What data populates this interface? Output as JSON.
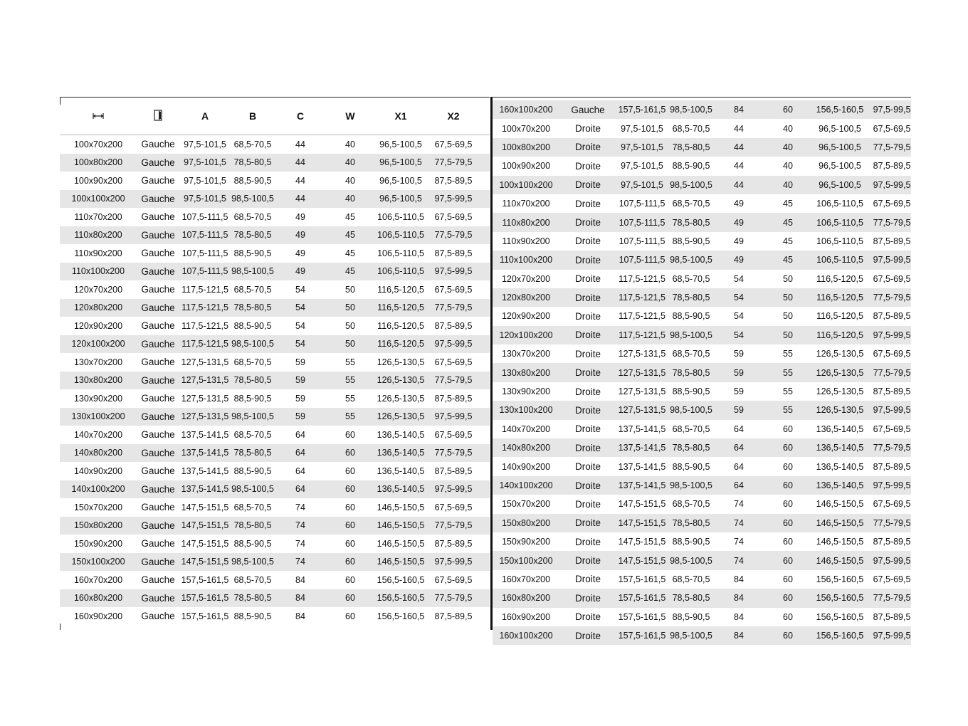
{
  "header": {
    "icons": [
      "width-arrows-icon",
      "door-icon"
    ],
    "labels": [
      "A",
      "B",
      "C",
      "W",
      "X1",
      "X2"
    ]
  },
  "left_rows": [
    [
      "100x70x200",
      "Gauche",
      "97,5-101,5",
      "68,5-70,5",
      "44",
      "40",
      "96,5-100,5",
      "67,5-69,5"
    ],
    [
      "100x80x200",
      "Gauche",
      "97,5-101,5",
      "78,5-80,5",
      "44",
      "40",
      "96,5-100,5",
      "77,5-79,5"
    ],
    [
      "100x90x200",
      "Gauche",
      "97,5-101,5",
      "88,5-90,5",
      "44",
      "40",
      "96,5-100,5",
      "87,5-89,5"
    ],
    [
      "100x100x200",
      "Gauche",
      "97,5-101,5",
      "98,5-100,5",
      "44",
      "40",
      "96,5-100,5",
      "97,5-99,5"
    ],
    [
      "110x70x200",
      "Gauche",
      "107,5-111,5",
      "68,5-70,5",
      "49",
      "45",
      "106,5-110,5",
      "67,5-69,5"
    ],
    [
      "110x80x200",
      "Gauche",
      "107,5-111,5",
      "78,5-80,5",
      "49",
      "45",
      "106,5-110,5",
      "77,5-79,5"
    ],
    [
      "110x90x200",
      "Gauche",
      "107,5-111,5",
      "88,5-90,5",
      "49",
      "45",
      "106,5-110,5",
      "87,5-89,5"
    ],
    [
      "110x100x200",
      "Gauche",
      "107,5-111,5",
      "98,5-100,5",
      "49",
      "45",
      "106,5-110,5",
      "97,5-99,5"
    ],
    [
      "120x70x200",
      "Gauche",
      "117,5-121,5",
      "68,5-70,5",
      "54",
      "50",
      "116,5-120,5",
      "67,5-69,5"
    ],
    [
      "120x80x200",
      "Gauche",
      "117,5-121,5",
      "78,5-80,5",
      "54",
      "50",
      "116,5-120,5",
      "77,5-79,5"
    ],
    [
      "120x90x200",
      "Gauche",
      "117,5-121,5",
      "88,5-90,5",
      "54",
      "50",
      "116,5-120,5",
      "87,5-89,5"
    ],
    [
      "120x100x200",
      "Gauche",
      "117,5-121,5",
      "98,5-100,5",
      "54",
      "50",
      "116,5-120,5",
      "97,5-99,5"
    ],
    [
      "130x70x200",
      "Gauche",
      "127,5-131,5",
      "68,5-70,5",
      "59",
      "55",
      "126,5-130,5",
      "67,5-69,5"
    ],
    [
      "130x80x200",
      "Gauche",
      "127,5-131,5",
      "78,5-80,5",
      "59",
      "55",
      "126,5-130,5",
      "77,5-79,5"
    ],
    [
      "130x90x200",
      "Gauche",
      "127,5-131,5",
      "88,5-90,5",
      "59",
      "55",
      "126,5-130,5",
      "87,5-89,5"
    ],
    [
      "130x100x200",
      "Gauche",
      "127,5-131,5",
      "98,5-100,5",
      "59",
      "55",
      "126,5-130,5",
      "97,5-99,5"
    ],
    [
      "140x70x200",
      "Gauche",
      "137,5-141,5",
      "68,5-70,5",
      "64",
      "60",
      "136,5-140,5",
      "67,5-69,5"
    ],
    [
      "140x80x200",
      "Gauche",
      "137,5-141,5",
      "78,5-80,5",
      "64",
      "60",
      "136,5-140,5",
      "77,5-79,5"
    ],
    [
      "140x90x200",
      "Gauche",
      "137,5-141,5",
      "88,5-90,5",
      "64",
      "60",
      "136,5-140,5",
      "87,5-89,5"
    ],
    [
      "140x100x200",
      "Gauche",
      "137,5-141,5",
      "98,5-100,5",
      "64",
      "60",
      "136,5-140,5",
      "97,5-99,5"
    ],
    [
      "150x70x200",
      "Gauche",
      "147,5-151,5",
      "68,5-70,5",
      "74",
      "60",
      "146,5-150,5",
      "67,5-69,5"
    ],
    [
      "150x80x200",
      "Gauche",
      "147,5-151,5",
      "78,5-80,5",
      "74",
      "60",
      "146,5-150,5",
      "77,5-79,5"
    ],
    [
      "150x90x200",
      "Gauche",
      "147,5-151,5",
      "88,5-90,5",
      "74",
      "60",
      "146,5-150,5",
      "87,5-89,5"
    ],
    [
      "150x100x200",
      "Gauche",
      "147,5-151,5",
      "98,5-100,5",
      "74",
      "60",
      "146,5-150,5",
      "97,5-99,5"
    ],
    [
      "160x70x200",
      "Gauche",
      "157,5-161,5",
      "68,5-70,5",
      "84",
      "60",
      "156,5-160,5",
      "67,5-69,5"
    ],
    [
      "160x80x200",
      "Gauche",
      "157,5-161,5",
      "78,5-80,5",
      "84",
      "60",
      "156,5-160,5",
      "77,5-79,5"
    ],
    [
      "160x90x200",
      "Gauche",
      "157,5-161,5",
      "88,5-90,5",
      "84",
      "60",
      "156,5-160,5",
      "87,5-89,5"
    ]
  ],
  "right_rows": [
    [
      "160x100x200",
      "Gauche",
      "157,5-161,5",
      "98,5-100,5",
      "84",
      "60",
      "156,5-160,5",
      "97,5-99,5"
    ],
    [
      "100x70x200",
      "Droite",
      "97,5-101,5",
      "68,5-70,5",
      "44",
      "40",
      "96,5-100,5",
      "67,5-69,5"
    ],
    [
      "100x80x200",
      "Droite",
      "97,5-101,5",
      "78,5-80,5",
      "44",
      "40",
      "96,5-100,5",
      "77,5-79,5"
    ],
    [
      "100x90x200",
      "Droite",
      "97,5-101,5",
      "88,5-90,5",
      "44",
      "40",
      "96,5-100,5",
      "87,5-89,5"
    ],
    [
      "100x100x200",
      "Droite",
      "97,5-101,5",
      "98,5-100,5",
      "44",
      "40",
      "96,5-100,5",
      "97,5-99,5"
    ],
    [
      "110x70x200",
      "Droite",
      "107,5-111,5",
      "68,5-70,5",
      "49",
      "45",
      "106,5-110,5",
      "67,5-69,5"
    ],
    [
      "110x80x200",
      "Droite",
      "107,5-111,5",
      "78,5-80,5",
      "49",
      "45",
      "106,5-110,5",
      "77,5-79,5"
    ],
    [
      "110x90x200",
      "Droite",
      "107,5-111,5",
      "88,5-90,5",
      "49",
      "45",
      "106,5-110,5",
      "87,5-89,5"
    ],
    [
      "110x100x200",
      "Droite",
      "107,5-111,5",
      "98,5-100,5",
      "49",
      "45",
      "106,5-110,5",
      "97,5-99,5"
    ],
    [
      "120x70x200",
      "Droite",
      "117,5-121,5",
      "68,5-70,5",
      "54",
      "50",
      "116,5-120,5",
      "67,5-69,5"
    ],
    [
      "120x80x200",
      "Droite",
      "117,5-121,5",
      "78,5-80,5",
      "54",
      "50",
      "116,5-120,5",
      "77,5-79,5"
    ],
    [
      "120x90x200",
      "Droite",
      "117,5-121,5",
      "88,5-90,5",
      "54",
      "50",
      "116,5-120,5",
      "87,5-89,5"
    ],
    [
      "120x100x200",
      "Droite",
      "117,5-121,5",
      "98,5-100,5",
      "54",
      "50",
      "116,5-120,5",
      "97,5-99,5"
    ],
    [
      "130x70x200",
      "Droite",
      "127,5-131,5",
      "68,5-70,5",
      "59",
      "55",
      "126,5-130,5",
      "67,5-69,5"
    ],
    [
      "130x80x200",
      "Droite",
      "127,5-131,5",
      "78,5-80,5",
      "59",
      "55",
      "126,5-130,5",
      "77,5-79,5"
    ],
    [
      "130x90x200",
      "Droite",
      "127,5-131,5",
      "88,5-90,5",
      "59",
      "55",
      "126,5-130,5",
      "87,5-89,5"
    ],
    [
      "130x100x200",
      "Droite",
      "127,5-131,5",
      "98,5-100,5",
      "59",
      "55",
      "126,5-130,5",
      "97,5-99,5"
    ],
    [
      "140x70x200",
      "Droite",
      "137,5-141,5",
      "68,5-70,5",
      "64",
      "60",
      "136,5-140,5",
      "67,5-69,5"
    ],
    [
      "140x80x200",
      "Droite",
      "137,5-141,5",
      "78,5-80,5",
      "64",
      "60",
      "136,5-140,5",
      "77,5-79,5"
    ],
    [
      "140x90x200",
      "Droite",
      "137,5-141,5",
      "88,5-90,5",
      "64",
      "60",
      "136,5-140,5",
      "87,5-89,5"
    ],
    [
      "140x100x200",
      "Droite",
      "137,5-141,5",
      "98,5-100,5",
      "64",
      "60",
      "136,5-140,5",
      "97,5-99,5"
    ],
    [
      "150x70x200",
      "Droite",
      "147,5-151,5",
      "68,5-70,5",
      "74",
      "60",
      "146,5-150,5",
      "67,5-69,5"
    ],
    [
      "150x80x200",
      "Droite",
      "147,5-151,5",
      "78,5-80,5",
      "74",
      "60",
      "146,5-150,5",
      "77,5-79,5"
    ],
    [
      "150x90x200",
      "Droite",
      "147,5-151,5",
      "88,5-90,5",
      "74",
      "60",
      "146,5-150,5",
      "87,5-89,5"
    ],
    [
      "150x100x200",
      "Droite",
      "147,5-151,5",
      "98,5-100,5",
      "74",
      "60",
      "146,5-150,5",
      "97,5-99,5"
    ],
    [
      "160x70x200",
      "Droite",
      "157,5-161,5",
      "68,5-70,5",
      "84",
      "60",
      "156,5-160,5",
      "67,5-69,5"
    ],
    [
      "160x80x200",
      "Droite",
      "157,5-161,5",
      "78,5-80,5",
      "84",
      "60",
      "156,5-160,5",
      "77,5-79,5"
    ],
    [
      "160x90x200",
      "Droite",
      "157,5-161,5",
      "88,5-90,5",
      "84",
      "60",
      "156,5-160,5",
      "87,5-89,5"
    ],
    [
      "160x100x200",
      "Droite",
      "157,5-161,5",
      "98,5-100,5",
      "84",
      "60",
      "156,5-160,5",
      "97,5-99,5"
    ]
  ]
}
